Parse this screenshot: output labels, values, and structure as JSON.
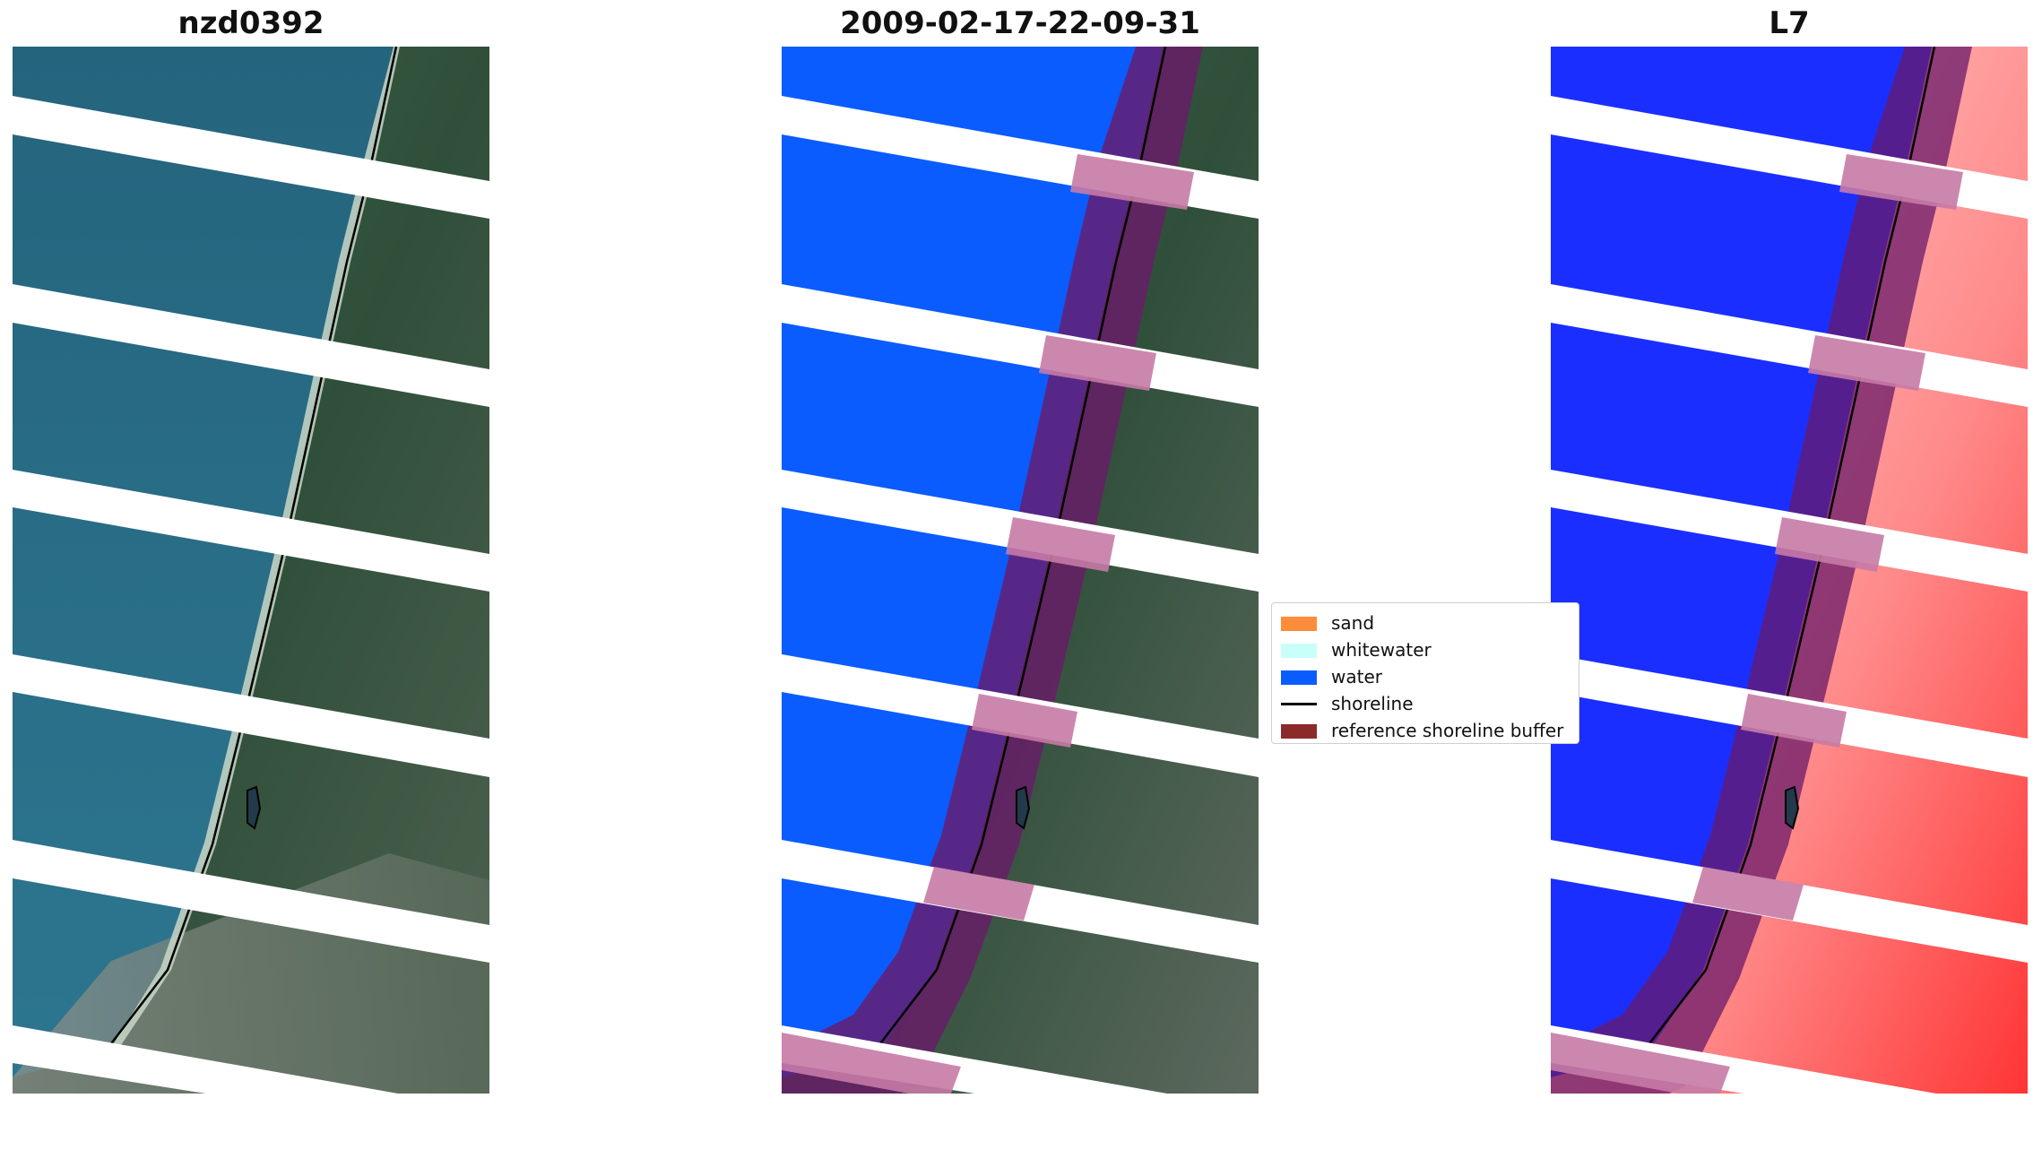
{
  "panels": [
    {
      "title": "nzd0392"
    },
    {
      "title": "2009-02-17-22-09-31"
    },
    {
      "title": "L7"
    }
  ],
  "legend": {
    "items": [
      {
        "label": "sand",
        "color": "#ff8c3a"
      },
      {
        "label": "whitewater",
        "color": "#c8fff8"
      },
      {
        "label": "water",
        "color": "#0a5cff"
      },
      {
        "label": "shoreline",
        "color": "#000000"
      },
      {
        "label": "reference shoreline buffer",
        "color": "#8b2a2a"
      }
    ]
  },
  "colors": {
    "ocean": "#2a6f86",
    "land": "#3d5c45",
    "water_class": "#0a5cff",
    "buffer": "#6a1a6a",
    "index_water": "#1a2fff",
    "index_land": "#ff4b4b"
  }
}
